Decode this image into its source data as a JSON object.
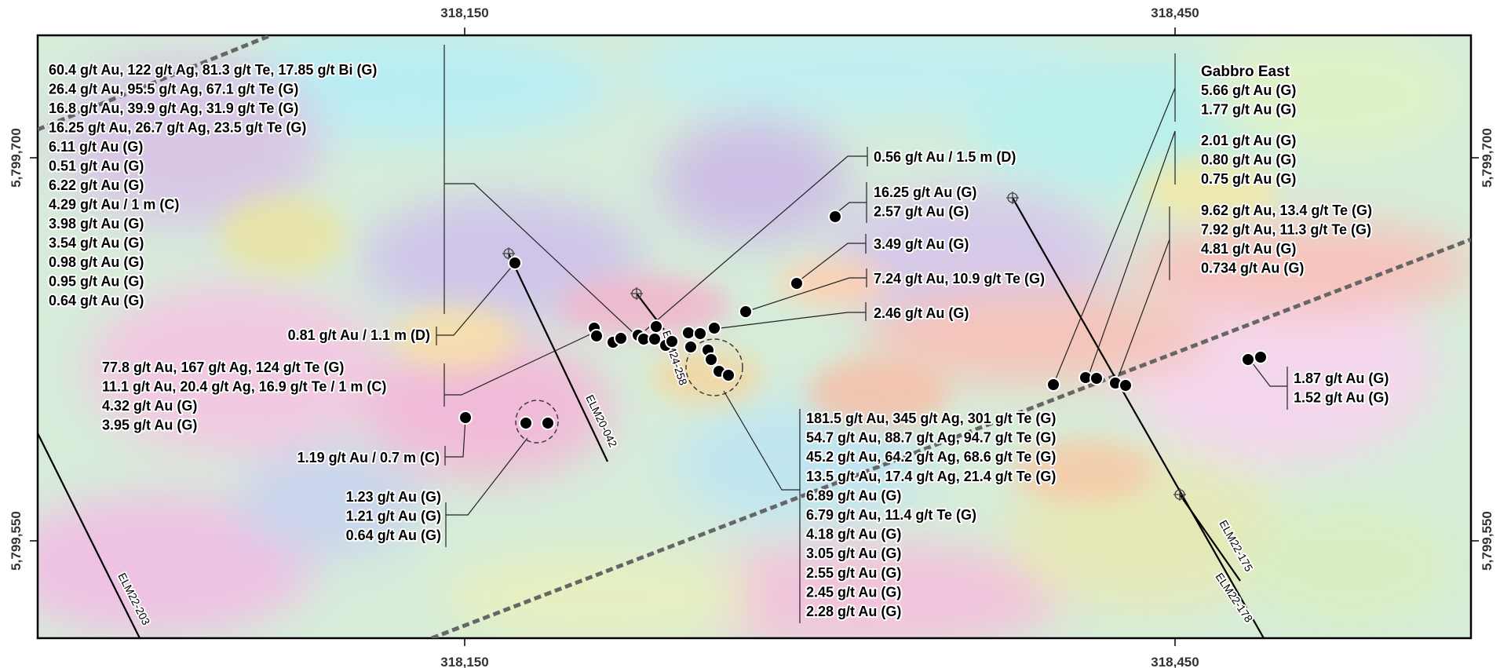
{
  "axes": {
    "x_ticks": [
      "318,150",
      "318,450"
    ],
    "y_ticks": [
      "5,799,700",
      "5,799,550"
    ]
  },
  "drillholes": [
    "ELM22-203",
    "ELM20-042",
    "ELM24-258",
    "ELM22-175",
    "ELM22-178"
  ],
  "zone_title": "Gabbro East",
  "assay_groups": [
    [
      "60.4 g/t Au, 122 g/t Ag, 81.3 g/t Te, 17.85 g/t Bi (G)",
      "26.4 g/t Au, 95.5 g/t Ag, 67.1 g/t Te (G)",
      "16.8 g/t Au, 39.9 g/t Ag, 31.9 g/t Te (G)",
      "16.25 g/t Au, 26.7 g/t Ag, 23.5 g/t Te (G)",
      "6.11 g/t Au (G)",
      "0.51 g/t Au (G)",
      "6.22 g/t Au (G)",
      "4.29 g/t Au / 1 m (C)",
      "3.98 g/t Au (G)",
      "3.54 g/t Au (G)",
      "0.98 g/t Au (G)",
      "0.95 g/t Au (G)",
      "0.64 g/t Au (G)"
    ],
    [
      "0.81 g/t Au / 1.1 m (D)"
    ],
    [
      "77.8 g/t Au, 167 g/t Ag, 124 g/t Te (G)",
      "11.1 g/t Au, 20.4 g/t Ag, 16.9 g/t Te / 1 m (C)",
      "4.32 g/t Au (G)",
      "3.95 g/t Au (G)"
    ],
    [
      "1.19 g/t Au / 0.7 m (C)"
    ],
    [
      "1.23 g/t Au (G)",
      "1.21 g/t Au (G)",
      "0.64 g/t Au (G)"
    ],
    [
      "0.56 g/t Au / 1.5 m (D)"
    ],
    [
      "16.25 g/t Au (G)",
      "2.57 g/t Au (G)"
    ],
    [
      "3.49 g/t Au (G)"
    ],
    [
      "7.24 g/t Au, 10.9 g/t Te (G)"
    ],
    [
      "2.46 g/t Au (G)"
    ],
    [
      "181.5 g/t Au, 345 g/t Ag, 301 g/t Te (G)",
      "54.7 g/t Au, 88.7 g/t Ag, 94.7 g/t Te (G)",
      "45.2 g/t Au, 64.2 g/t Ag, 68.6 g/t Te (G)",
      "13.5 g/t Au, 17.4 g/t Ag, 21.4 g/t Te (G)",
      "6.89 g/t Au (G)",
      "6.79 g/t Au, 11.4 g/t Te (G)",
      "4.18 g/t Au (G)",
      "3.05 g/t Au (G)",
      "2.55 g/t Au (G)",
      "2.45 g/t Au (G)",
      "2.28 g/t Au (G)"
    ],
    [
      "5.66 g/t Au (G)",
      "1.77 g/t Au (G)"
    ],
    [
      "2.01 g/t Au (G)",
      "0.80 g/t Au (G)",
      "0.75 g/t Au (G)"
    ],
    [
      "9.62 g/t Au, 13.4 g/t Te (G)",
      "7.92 g/t Au, 11.3 g/t Te (G)",
      "4.81 g/t Au (G)",
      "0.734 g/t Au (G)"
    ],
    [
      "1.87 g/t Au (G)",
      "1.52 g/t Au (G)"
    ]
  ]
}
